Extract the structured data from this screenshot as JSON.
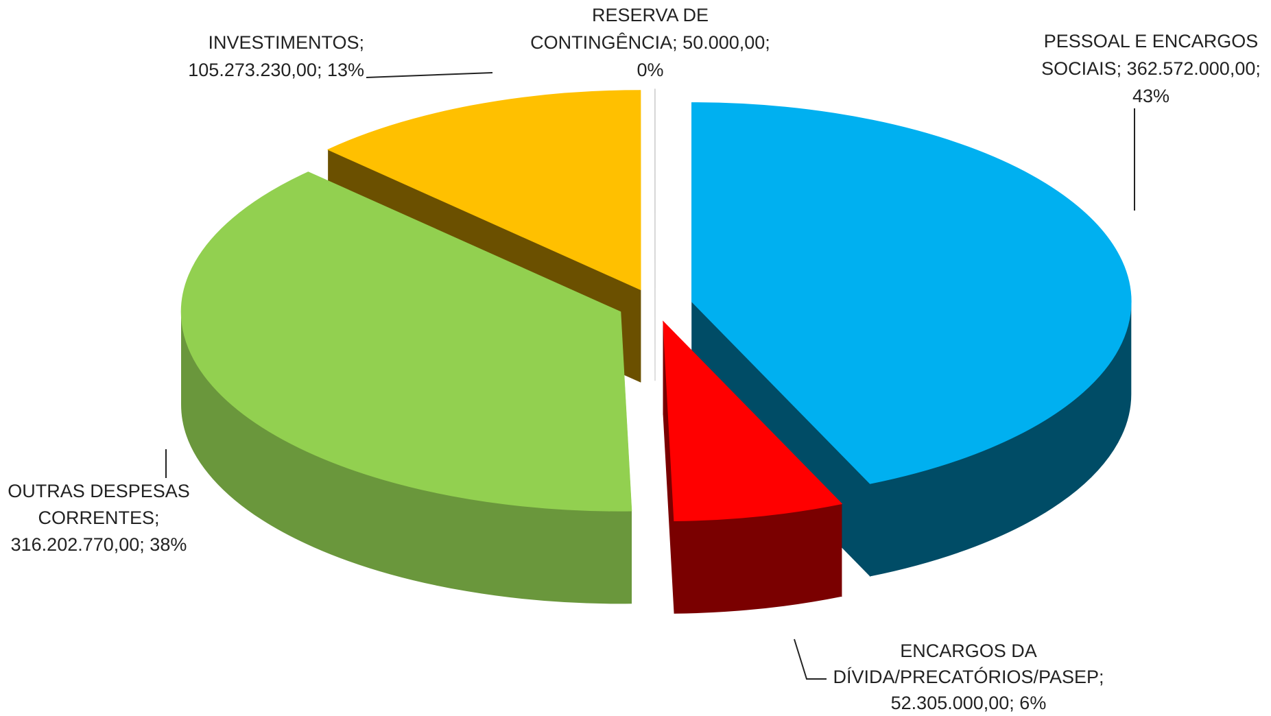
{
  "chart_data": {
    "type": "pie3d",
    "data_labels": [
      [
        "PESSOAL E ENCARGOS",
        "SOCIAIS; 362.572.000,00;",
        "43%"
      ],
      [
        "ENCARGOS DA",
        "DÍVIDA/PRECATÓRIOS/PASEP;",
        "52.305.000,00; 6%"
      ],
      [
        "OUTRAS DESPESAS",
        "CORRENTES;",
        "316.202.770,00; 38%"
      ],
      [
        "INVESTIMENTOS;",
        "105.273.230,00; 13%"
      ],
      [
        "RESERVA DE",
        "CONTINGÊNCIA; 50.000,00;",
        "0%"
      ]
    ],
    "values": [
      362572000,
      52305000,
      316202770,
      105273230,
      50000
    ],
    "colors": [
      "#00b0f0",
      "#ff0000",
      "#92d050",
      "#ffc000",
      "#d9d9d9"
    ],
    "side_colors": [
      "#004c66",
      "#7a0000",
      "#6a973c",
      "#6b5000",
      "#bfbfbf"
    ]
  }
}
